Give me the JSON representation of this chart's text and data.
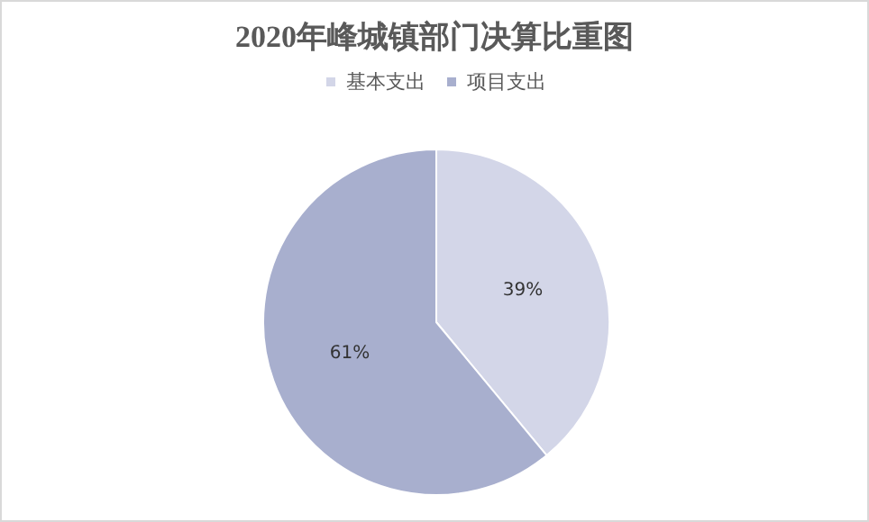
{
  "chart_data": {
    "type": "pie",
    "title": "2020年峰城镇部门决算比重图",
    "categories": [
      "基本支出",
      "项目支出"
    ],
    "values": [
      39,
      61
    ],
    "value_labels": [
      "39%",
      "61%"
    ],
    "colors": [
      "#d3d6e8",
      "#a8afce"
    ],
    "legend": "top"
  }
}
